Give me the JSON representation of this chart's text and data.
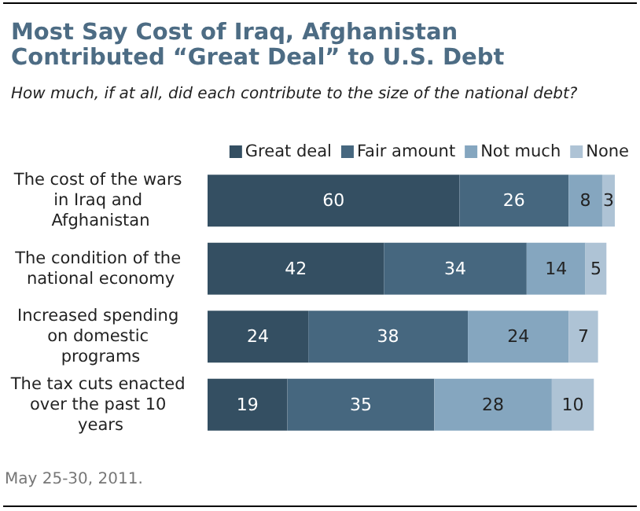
{
  "chart_data": {
    "type": "bar",
    "orientation": "horizontal",
    "stacked": true,
    "data_labels": true,
    "legend": "top right",
    "title": "Most Say Cost of Iraq, Afghanistan Contributed “Great Deal” to U.S. Debt",
    "subtitle": "How much, if at all, did each contribute to the size of the national debt?",
    "categories": [
      "The cost of the wars in Iraq and Afghanistan",
      "The condition of the national economy",
      "Increased spending on domestic programs",
      "The tax cuts enacted over the past 10 years"
    ],
    "series": [
      {
        "name": "Great deal",
        "color": "#344f62",
        "values": [
          60,
          42,
          24,
          19
        ]
      },
      {
        "name": "Fair amount",
        "color": "#46677f",
        "values": [
          26,
          34,
          38,
          35
        ]
      },
      {
        "name": "Not much",
        "color": "#85a6bf",
        "values": [
          8,
          14,
          24,
          28
        ]
      },
      {
        "name": "None",
        "color": "#aec3d5",
        "values": [
          3,
          5,
          7,
          10
        ]
      }
    ],
    "annotations": [
      "May 25-30, 2011."
    ]
  }
}
